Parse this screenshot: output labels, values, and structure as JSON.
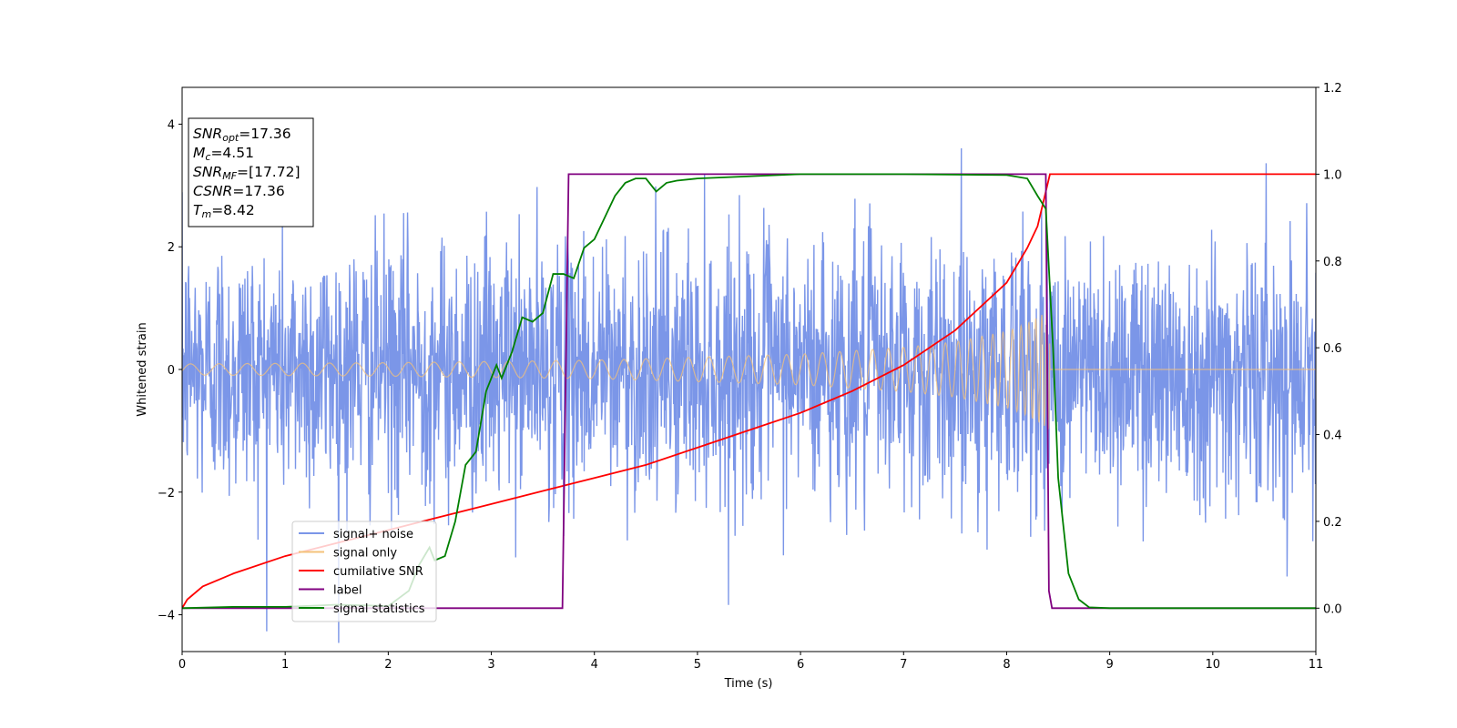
{
  "chart_data": {
    "type": "line",
    "xlabel": "Time (s)",
    "ylabel_left": "Whitened strain",
    "xlim": [
      0,
      11
    ],
    "ylim_left": [
      -4.6,
      4.6
    ],
    "ylim_right": [
      -0.1,
      1.2
    ],
    "x_ticks": [
      "0",
      "1",
      "2",
      "3",
      "4",
      "5",
      "6",
      "7",
      "8",
      "9",
      "10",
      "11"
    ],
    "y_left_ticks": [
      "−4",
      "−2",
      "0",
      "2",
      "4"
    ],
    "y_right_ticks": [
      "0.0",
      "0.2",
      "0.4",
      "0.6",
      "0.8",
      "1.0",
      "1.2"
    ],
    "grid": false,
    "legend_location": "lower-left",
    "stats_box": {
      "lines": [
        {
          "sym": "SNR",
          "sub": "opt",
          "value": "=17.36"
        },
        {
          "sym": "M",
          "sub": "c",
          "value": "=4.51"
        },
        {
          "sym": "SNR",
          "sub": "MF",
          "value": "=[17.72]"
        },
        {
          "sym": "CSNR",
          "sub": "",
          "value": "=17.36"
        },
        {
          "sym": "T",
          "sub": "m",
          "value": "=8.42"
        }
      ]
    },
    "series": [
      {
        "name": "signal+ noise",
        "axis": "left",
        "color": "#7b96e8",
        "noise_sigma": 1.0,
        "signal_end": 8.42
      },
      {
        "name": "signal only",
        "axis": "left",
        "color": "#f4c27a",
        "envelope": [
          [
            0,
            0.09
          ],
          [
            2,
            0.11
          ],
          [
            4,
            0.15
          ],
          [
            6,
            0.25
          ],
          [
            7,
            0.36
          ],
          [
            7.5,
            0.45
          ],
          [
            8,
            0.62
          ],
          [
            8.2,
            0.75
          ],
          [
            8.35,
            0.9
          ],
          [
            8.42,
            1.0
          ]
        ],
        "end": 8.42
      },
      {
        "name": "cumilative SNR",
        "axis": "right",
        "color": "#ff0000",
        "x": [
          0,
          0.05,
          0.2,
          0.5,
          1,
          1.5,
          2,
          2.5,
          3,
          3.5,
          4,
          4.5,
          5,
          5.5,
          6,
          6.5,
          7,
          7.5,
          8,
          8.2,
          8.3,
          8.42,
          8.45,
          11
        ],
        "y": [
          0.0,
          0.02,
          0.05,
          0.08,
          0.12,
          0.15,
          0.18,
          0.21,
          0.24,
          0.27,
          0.3,
          0.33,
          0.37,
          0.41,
          0.45,
          0.5,
          0.56,
          0.64,
          0.75,
          0.83,
          0.88,
          1.0,
          1.0,
          1.0
        ]
      },
      {
        "name": "label",
        "axis": "right",
        "color": "#800080",
        "x": [
          0,
          3.69,
          3.75,
          8.38,
          8.41,
          8.44,
          11
        ],
        "y": [
          0,
          0,
          1,
          1,
          0.04,
          0,
          0
        ]
      },
      {
        "name": "signal statistics",
        "axis": "right",
        "color": "#008000",
        "x": [
          0,
          0.5,
          1,
          1.5,
          2,
          2.2,
          2.3,
          2.4,
          2.45,
          2.55,
          2.65,
          2.75,
          2.85,
          2.95,
          3.05,
          3.1,
          3.2,
          3.3,
          3.4,
          3.5,
          3.6,
          3.7,
          3.8,
          3.9,
          4.0,
          4.1,
          4.2,
          4.3,
          4.4,
          4.5,
          4.6,
          4.7,
          4.8,
          5.0,
          5.5,
          6.0,
          7.0,
          8.0,
          8.2,
          8.3,
          8.38,
          8.45,
          8.5,
          8.6,
          8.7,
          8.8,
          9.0,
          11
        ],
        "y": [
          0.0,
          0.003,
          0.003,
          0.008,
          0.005,
          0.04,
          0.1,
          0.14,
          0.11,
          0.12,
          0.2,
          0.33,
          0.36,
          0.5,
          0.56,
          0.53,
          0.59,
          0.67,
          0.66,
          0.68,
          0.77,
          0.77,
          0.76,
          0.83,
          0.85,
          0.9,
          0.95,
          0.98,
          0.99,
          0.99,
          0.96,
          0.98,
          0.985,
          0.99,
          0.995,
          1.0,
          1.0,
          0.998,
          0.99,
          0.95,
          0.92,
          0.6,
          0.3,
          0.08,
          0.02,
          0.002,
          0.0,
          0.0
        ]
      }
    ]
  }
}
